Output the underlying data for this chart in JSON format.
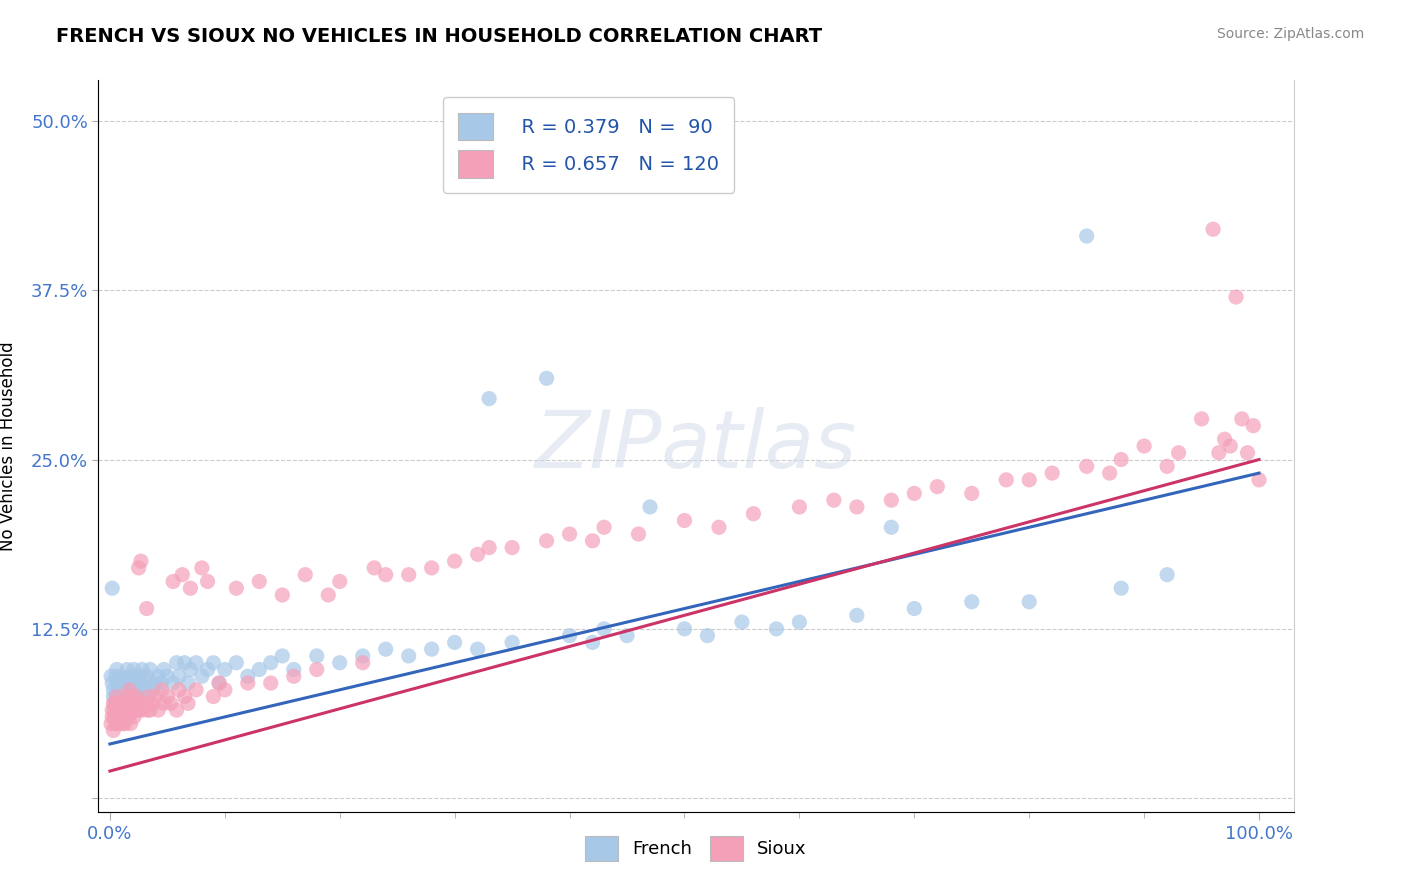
{
  "title": "FRENCH VS SIOUX NO VEHICLES IN HOUSEHOLD CORRELATION CHART",
  "source": "Source: ZipAtlas.com",
  "ylabel": "No Vehicles in Household",
  "french_R": 0.379,
  "french_N": 90,
  "sioux_R": 0.657,
  "sioux_N": 120,
  "french_color": "#a8c8e8",
  "sioux_color": "#f4a0b8",
  "french_line_color": "#3366bb",
  "sioux_line_color": "#cc3366",
  "watermark_text": "ZIPatlas",
  "background_color": "#ffffff",
  "french_scatter": [
    [
      0.001,
      0.09
    ],
    [
      0.002,
      0.085
    ],
    [
      0.003,
      0.075
    ],
    [
      0.003,
      0.08
    ],
    [
      0.004,
      0.07
    ],
    [
      0.005,
      0.075
    ],
    [
      0.005,
      0.09
    ],
    [
      0.006,
      0.08
    ],
    [
      0.006,
      0.095
    ],
    [
      0.007,
      0.085
    ],
    [
      0.008,
      0.07
    ],
    [
      0.009,
      0.08
    ],
    [
      0.01,
      0.075
    ],
    [
      0.01,
      0.09
    ],
    [
      0.011,
      0.08
    ],
    [
      0.012,
      0.085
    ],
    [
      0.013,
      0.07
    ],
    [
      0.014,
      0.08
    ],
    [
      0.015,
      0.085
    ],
    [
      0.015,
      0.095
    ],
    [
      0.016,
      0.075
    ],
    [
      0.017,
      0.08
    ],
    [
      0.018,
      0.09
    ],
    [
      0.019,
      0.085
    ],
    [
      0.02,
      0.075
    ],
    [
      0.021,
      0.095
    ],
    [
      0.022,
      0.08
    ],
    [
      0.023,
      0.085
    ],
    [
      0.024,
      0.09
    ],
    [
      0.025,
      0.08
    ],
    [
      0.026,
      0.075
    ],
    [
      0.027,
      0.085
    ],
    [
      0.028,
      0.095
    ],
    [
      0.03,
      0.08
    ],
    [
      0.032,
      0.09
    ],
    [
      0.033,
      0.085
    ],
    [
      0.035,
      0.095
    ],
    [
      0.037,
      0.08
    ],
    [
      0.04,
      0.085
    ],
    [
      0.042,
      0.09
    ],
    [
      0.045,
      0.085
    ],
    [
      0.047,
      0.095
    ],
    [
      0.05,
      0.09
    ],
    [
      0.055,
      0.085
    ],
    [
      0.058,
      0.1
    ],
    [
      0.06,
      0.09
    ],
    [
      0.065,
      0.1
    ],
    [
      0.068,
      0.085
    ],
    [
      0.07,
      0.095
    ],
    [
      0.075,
      0.1
    ],
    [
      0.08,
      0.09
    ],
    [
      0.085,
      0.095
    ],
    [
      0.09,
      0.1
    ],
    [
      0.095,
      0.085
    ],
    [
      0.1,
      0.095
    ],
    [
      0.11,
      0.1
    ],
    [
      0.12,
      0.09
    ],
    [
      0.13,
      0.095
    ],
    [
      0.14,
      0.1
    ],
    [
      0.15,
      0.105
    ],
    [
      0.16,
      0.095
    ],
    [
      0.18,
      0.105
    ],
    [
      0.2,
      0.1
    ],
    [
      0.22,
      0.105
    ],
    [
      0.24,
      0.11
    ],
    [
      0.26,
      0.105
    ],
    [
      0.28,
      0.11
    ],
    [
      0.3,
      0.115
    ],
    [
      0.32,
      0.11
    ],
    [
      0.33,
      0.295
    ],
    [
      0.35,
      0.115
    ],
    [
      0.38,
      0.31
    ],
    [
      0.4,
      0.12
    ],
    [
      0.42,
      0.115
    ],
    [
      0.43,
      0.125
    ],
    [
      0.45,
      0.12
    ],
    [
      0.47,
      0.215
    ],
    [
      0.5,
      0.125
    ],
    [
      0.52,
      0.12
    ],
    [
      0.55,
      0.13
    ],
    [
      0.58,
      0.125
    ],
    [
      0.6,
      0.13
    ],
    [
      0.65,
      0.135
    ],
    [
      0.68,
      0.2
    ],
    [
      0.7,
      0.14
    ],
    [
      0.75,
      0.145
    ],
    [
      0.8,
      0.145
    ],
    [
      0.85,
      0.415
    ],
    [
      0.88,
      0.155
    ],
    [
      0.92,
      0.165
    ],
    [
      0.002,
      0.155
    ]
  ],
  "sioux_scatter": [
    [
      0.001,
      0.055
    ],
    [
      0.002,
      0.06
    ],
    [
      0.002,
      0.065
    ],
    [
      0.003,
      0.05
    ],
    [
      0.003,
      0.07
    ],
    [
      0.004,
      0.06
    ],
    [
      0.004,
      0.065
    ],
    [
      0.005,
      0.055
    ],
    [
      0.005,
      0.07
    ],
    [
      0.006,
      0.06
    ],
    [
      0.006,
      0.075
    ],
    [
      0.007,
      0.065
    ],
    [
      0.007,
      0.055
    ],
    [
      0.008,
      0.06
    ],
    [
      0.008,
      0.07
    ],
    [
      0.009,
      0.065
    ],
    [
      0.01,
      0.06
    ],
    [
      0.01,
      0.07
    ],
    [
      0.011,
      0.055
    ],
    [
      0.011,
      0.065
    ],
    [
      0.012,
      0.06
    ],
    [
      0.012,
      0.07
    ],
    [
      0.013,
      0.065
    ],
    [
      0.013,
      0.055
    ],
    [
      0.014,
      0.06
    ],
    [
      0.014,
      0.07
    ],
    [
      0.015,
      0.065
    ],
    [
      0.015,
      0.075
    ],
    [
      0.016,
      0.06
    ],
    [
      0.016,
      0.065
    ],
    [
      0.017,
      0.07
    ],
    [
      0.017,
      0.08
    ],
    [
      0.018,
      0.065
    ],
    [
      0.018,
      0.055
    ],
    [
      0.019,
      0.07
    ],
    [
      0.02,
      0.065
    ],
    [
      0.02,
      0.075
    ],
    [
      0.021,
      0.06
    ],
    [
      0.022,
      0.07
    ],
    [
      0.022,
      0.065
    ],
    [
      0.023,
      0.075
    ],
    [
      0.024,
      0.065
    ],
    [
      0.025,
      0.17
    ],
    [
      0.025,
      0.065
    ],
    [
      0.026,
      0.07
    ],
    [
      0.027,
      0.175
    ],
    [
      0.028,
      0.065
    ],
    [
      0.03,
      0.07
    ],
    [
      0.032,
      0.14
    ],
    [
      0.033,
      0.065
    ],
    [
      0.034,
      0.075
    ],
    [
      0.035,
      0.065
    ],
    [
      0.037,
      0.07
    ],
    [
      0.04,
      0.075
    ],
    [
      0.042,
      0.065
    ],
    [
      0.045,
      0.08
    ],
    [
      0.047,
      0.07
    ],
    [
      0.05,
      0.075
    ],
    [
      0.053,
      0.07
    ],
    [
      0.055,
      0.16
    ],
    [
      0.058,
      0.065
    ],
    [
      0.06,
      0.08
    ],
    [
      0.063,
      0.165
    ],
    [
      0.065,
      0.075
    ],
    [
      0.068,
      0.07
    ],
    [
      0.07,
      0.155
    ],
    [
      0.075,
      0.08
    ],
    [
      0.08,
      0.17
    ],
    [
      0.085,
      0.16
    ],
    [
      0.09,
      0.075
    ],
    [
      0.095,
      0.085
    ],
    [
      0.1,
      0.08
    ],
    [
      0.11,
      0.155
    ],
    [
      0.12,
      0.085
    ],
    [
      0.13,
      0.16
    ],
    [
      0.14,
      0.085
    ],
    [
      0.15,
      0.15
    ],
    [
      0.16,
      0.09
    ],
    [
      0.17,
      0.165
    ],
    [
      0.18,
      0.095
    ],
    [
      0.19,
      0.15
    ],
    [
      0.2,
      0.16
    ],
    [
      0.22,
      0.1
    ],
    [
      0.23,
      0.17
    ],
    [
      0.24,
      0.165
    ],
    [
      0.26,
      0.165
    ],
    [
      0.28,
      0.17
    ],
    [
      0.3,
      0.175
    ],
    [
      0.32,
      0.18
    ],
    [
      0.33,
      0.185
    ],
    [
      0.35,
      0.185
    ],
    [
      0.38,
      0.19
    ],
    [
      0.4,
      0.195
    ],
    [
      0.42,
      0.19
    ],
    [
      0.43,
      0.2
    ],
    [
      0.46,
      0.195
    ],
    [
      0.5,
      0.205
    ],
    [
      0.53,
      0.2
    ],
    [
      0.56,
      0.21
    ],
    [
      0.6,
      0.215
    ],
    [
      0.63,
      0.22
    ],
    [
      0.65,
      0.215
    ],
    [
      0.68,
      0.22
    ],
    [
      0.7,
      0.225
    ],
    [
      0.72,
      0.23
    ],
    [
      0.75,
      0.225
    ],
    [
      0.78,
      0.235
    ],
    [
      0.8,
      0.235
    ],
    [
      0.82,
      0.24
    ],
    [
      0.85,
      0.245
    ],
    [
      0.87,
      0.24
    ],
    [
      0.88,
      0.25
    ],
    [
      0.9,
      0.26
    ],
    [
      0.92,
      0.245
    ],
    [
      0.93,
      0.255
    ],
    [
      0.95,
      0.28
    ],
    [
      0.96,
      0.42
    ],
    [
      0.97,
      0.265
    ],
    [
      0.98,
      0.37
    ],
    [
      0.99,
      0.255
    ],
    [
      1.0,
      0.235
    ],
    [
      0.995,
      0.275
    ],
    [
      0.985,
      0.28
    ],
    [
      0.975,
      0.26
    ],
    [
      0.965,
      0.255
    ]
  ],
  "french_line": [
    0.0,
    0.04,
    1.0,
    0.24
  ],
  "sioux_line": [
    0.0,
    0.02,
    1.0,
    0.25
  ],
  "xlim": [
    -0.01,
    1.03
  ],
  "ylim": [
    -0.01,
    0.53
  ],
  "ytick_vals": [
    0.0,
    0.125,
    0.25,
    0.375,
    0.5
  ],
  "ytick_labels": [
    "",
    "12.5%",
    "25.0%",
    "37.5%",
    "50.0%"
  ]
}
